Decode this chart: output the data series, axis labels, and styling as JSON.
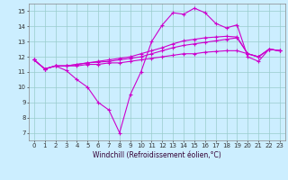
{
  "background_color": "#cceeff",
  "grid_color": "#99cccc",
  "line_color": "#cc00cc",
  "marker": "+",
  "markersize": 3,
  "linewidth": 0.8,
  "markeredgewidth": 0.8,
  "xlabel": "Windchill (Refroidissement éolien,°C)",
  "xlabel_fontsize": 5.5,
  "tick_fontsize": 5,
  "xlim": [
    -0.5,
    23.5
  ],
  "ylim": [
    6.5,
    15.5
  ],
  "yticks": [
    7,
    8,
    9,
    10,
    11,
    12,
    13,
    14,
    15
  ],
  "xticks": [
    0,
    1,
    2,
    3,
    4,
    5,
    6,
    7,
    8,
    9,
    10,
    11,
    12,
    13,
    14,
    15,
    16,
    17,
    18,
    19,
    20,
    21,
    22,
    23
  ],
  "series": [
    [
      11.8,
      11.2,
      11.4,
      11.1,
      10.5,
      10.0,
      9.0,
      8.5,
      7.0,
      9.5,
      11.0,
      13.0,
      14.1,
      14.9,
      14.8,
      15.2,
      14.9,
      14.2,
      13.9,
      14.1,
      12.0,
      11.7,
      12.5,
      12.4
    ],
    [
      11.8,
      11.2,
      11.4,
      11.4,
      11.4,
      11.5,
      11.5,
      11.6,
      11.6,
      11.7,
      11.8,
      11.9,
      12.0,
      12.1,
      12.2,
      12.2,
      12.3,
      12.35,
      12.4,
      12.4,
      12.2,
      12.0,
      12.5,
      12.4
    ],
    [
      11.8,
      11.2,
      11.4,
      11.4,
      11.5,
      11.6,
      11.65,
      11.7,
      11.8,
      11.9,
      12.0,
      12.2,
      12.4,
      12.6,
      12.75,
      12.85,
      12.95,
      13.05,
      13.15,
      13.25,
      12.2,
      12.0,
      12.5,
      12.4
    ],
    [
      11.8,
      11.2,
      11.4,
      11.4,
      11.5,
      11.6,
      11.7,
      11.8,
      11.9,
      12.0,
      12.2,
      12.4,
      12.6,
      12.85,
      13.05,
      13.15,
      13.25,
      13.3,
      13.35,
      13.3,
      12.2,
      12.0,
      12.5,
      12.4
    ]
  ]
}
